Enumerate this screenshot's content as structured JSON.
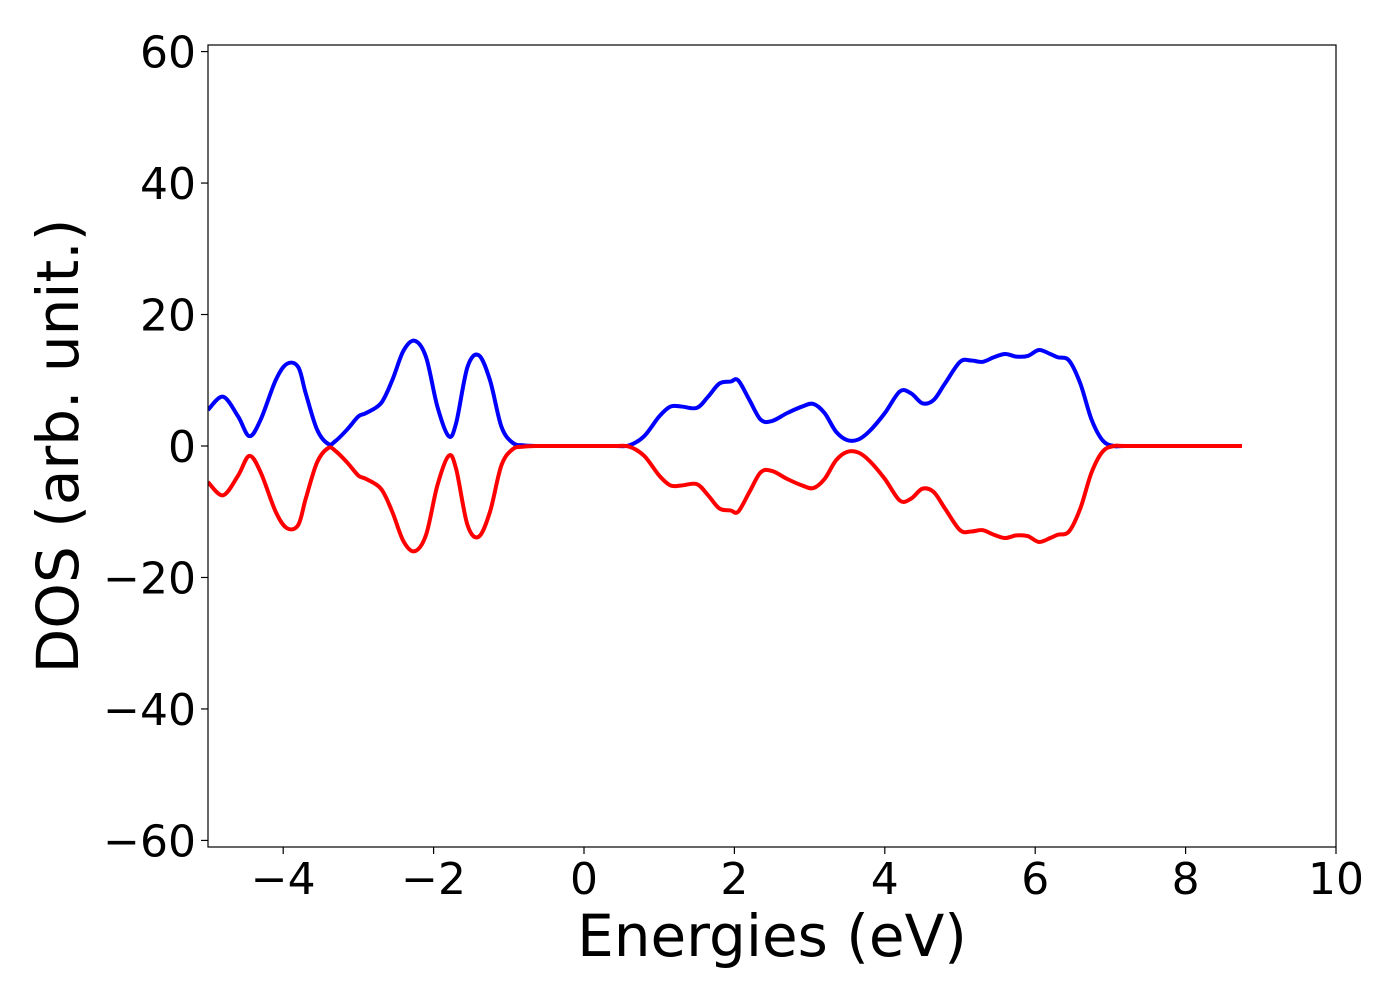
{
  "chart_data": {
    "type": "line",
    "title": "",
    "xlabel": "Energies (eV)",
    "ylabel": "DOS (arb. unit.)",
    "xlim": [
      -5,
      10
    ],
    "ylim": [
      -61,
      61
    ],
    "xticks": [
      -4,
      -2,
      0,
      2,
      4,
      6,
      8,
      10
    ],
    "xtick_labels": [
      "−4",
      "−2",
      "0",
      "2",
      "4",
      "6",
      "8",
      "10"
    ],
    "yticks": [
      60,
      40,
      20,
      0,
      -20,
      -40,
      -60
    ],
    "ytick_labels": [
      "60",
      "40",
      "20",
      "0",
      "−20",
      "−40",
      "−60"
    ],
    "grid": false,
    "legend": "none",
    "series": [
      {
        "color": "#0000ff",
        "x": [
          -5.0,
          -4.8,
          -4.6,
          -4.45,
          -4.3,
          -4.1,
          -3.95,
          -3.8,
          -3.7,
          -3.55,
          -3.4,
          -3.3,
          -3.15,
          -3.0,
          -2.9,
          -2.7,
          -2.55,
          -2.4,
          -2.25,
          -2.1,
          -1.95,
          -1.8,
          -1.7,
          -1.55,
          -1.4,
          -1.25,
          -1.1,
          -0.95,
          -0.8,
          -0.6,
          -0.4,
          0.0,
          0.4,
          0.6,
          0.8,
          1.0,
          1.15,
          1.3,
          1.5,
          1.65,
          1.8,
          1.95,
          2.05,
          2.2,
          2.35,
          2.5,
          2.7,
          2.9,
          3.05,
          3.2,
          3.35,
          3.5,
          3.65,
          3.8,
          4.0,
          4.2,
          4.35,
          4.5,
          4.65,
          4.8,
          5.0,
          5.15,
          5.3,
          5.45,
          5.6,
          5.75,
          5.9,
          6.05,
          6.2,
          6.3,
          6.45,
          6.6,
          6.75,
          6.9,
          7.05,
          7.2,
          8.0,
          8.75
        ],
        "y": [
          5.5,
          7.5,
          4.5,
          1.5,
          4,
          10,
          12.5,
          12,
          8,
          2.5,
          0.3,
          0.8,
          2.5,
          4.5,
          5,
          6.5,
          10,
          14.5,
          16,
          13.5,
          6,
          1.5,
          3.5,
          12,
          13.8,
          10,
          3,
          0.5,
          0.1,
          0,
          0,
          0,
          0,
          0.1,
          1.5,
          4.5,
          6,
          6,
          5.8,
          7.5,
          9.5,
          9.8,
          10,
          7,
          4,
          3.8,
          5,
          6,
          6.4,
          5,
          2.2,
          0.9,
          1,
          2.3,
          5,
          8.3,
          8,
          6.5,
          7,
          9.5,
          12.8,
          13,
          12.8,
          13.5,
          14,
          13.6,
          13.7,
          14.6,
          14,
          13.5,
          13,
          9.5,
          4,
          0.8,
          0,
          0,
          0,
          0
        ]
      },
      {
        "color": "#ff0000",
        "x": [
          -5.0,
          -4.8,
          -4.6,
          -4.45,
          -4.3,
          -4.1,
          -3.95,
          -3.8,
          -3.7,
          -3.55,
          -3.4,
          -3.3,
          -3.15,
          -3.0,
          -2.9,
          -2.7,
          -2.55,
          -2.4,
          -2.25,
          -2.1,
          -1.95,
          -1.8,
          -1.7,
          -1.55,
          -1.4,
          -1.25,
          -1.1,
          -0.95,
          -0.8,
          -0.6,
          -0.4,
          0.0,
          0.4,
          0.6,
          0.8,
          1.0,
          1.15,
          1.3,
          1.5,
          1.65,
          1.8,
          1.95,
          2.05,
          2.2,
          2.35,
          2.5,
          2.7,
          2.9,
          3.05,
          3.2,
          3.35,
          3.5,
          3.65,
          3.8,
          4.0,
          4.2,
          4.35,
          4.5,
          4.65,
          4.8,
          5.0,
          5.15,
          5.3,
          5.45,
          5.6,
          5.75,
          5.9,
          6.05,
          6.2,
          6.3,
          6.45,
          6.6,
          6.75,
          6.9,
          7.05,
          7.2,
          8.0,
          8.75
        ],
        "y": [
          -5.5,
          -7.5,
          -4.5,
          -1.5,
          -4,
          -10,
          -12.5,
          -12,
          -8,
          -2.5,
          -0.3,
          -0.8,
          -2.5,
          -4.5,
          -5,
          -6.5,
          -10,
          -14.5,
          -16,
          -13.5,
          -6,
          -1.5,
          -3.5,
          -12,
          -13.8,
          -10,
          -3,
          -0.5,
          -0.1,
          0,
          0,
          0,
          0,
          -0.1,
          -1.5,
          -4.5,
          -6,
          -6,
          -5.8,
          -7.5,
          -9.5,
          -9.8,
          -10,
          -7,
          -4,
          -3.8,
          -5,
          -6,
          -6.4,
          -5,
          -2.2,
          -0.9,
          -1,
          -2.3,
          -5,
          -8.3,
          -8,
          -6.5,
          -7,
          -9.5,
          -12.8,
          -13,
          -12.8,
          -13.5,
          -14,
          -13.6,
          -13.7,
          -14.6,
          -14,
          -13.5,
          -13,
          -9.5,
          -4,
          -0.8,
          0,
          0,
          0,
          0
        ]
      }
    ]
  }
}
